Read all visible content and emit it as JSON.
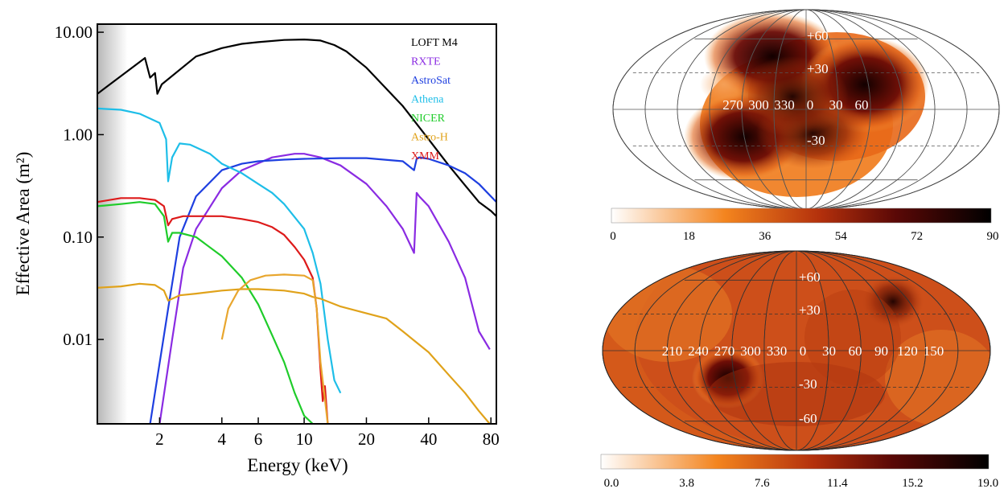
{
  "chart_data": [
    {
      "type": "line",
      "xlabel": "Energy (keV)",
      "ylabel": "Effective Area (m²)",
      "xscale": "log",
      "yscale": "log",
      "xlim": [
        1.0,
        85
      ],
      "ylim": [
        0.0015,
        12
      ],
      "x_ticks": [
        2,
        4,
        6,
        10,
        20,
        40,
        80
      ],
      "x_tick_labels": [
        "2",
        "4",
        "6",
        "10",
        "20",
        "40",
        "80"
      ],
      "y_ticks": [
        0.01,
        0.1,
        1,
        10
      ],
      "y_tick_labels": [
        "0.01",
        "0.10",
        "1.00",
        "10.00"
      ],
      "shaded_region_x": [
        1.0,
        1.4
      ],
      "legend_position": "top-right",
      "series": [
        {
          "name": "LOFT M4",
          "color": "#000000",
          "x": [
            1.0,
            1.7,
            1.8,
            1.9,
            1.95,
            2.05,
            3,
            4,
            5,
            6,
            8,
            10,
            12,
            14,
            16,
            20,
            25,
            30,
            40,
            50,
            60,
            70,
            80,
            85
          ],
          "y": [
            2.5,
            5.6,
            3.6,
            4.0,
            2.5,
            3.1,
            5.8,
            7.0,
            7.7,
            8.0,
            8.4,
            8.5,
            8.3,
            7.5,
            6.5,
            4.5,
            2.8,
            1.9,
            0.9,
            0.5,
            0.32,
            0.22,
            0.18,
            0.16
          ]
        },
        {
          "name": "RXTE",
          "color": "#8A2BE2",
          "x": [
            2,
            2.3,
            2.6,
            3,
            4,
            5,
            7,
            9,
            10,
            12,
            15,
            20,
            25,
            30,
            34,
            35,
            36,
            40,
            50,
            60,
            70,
            79
          ],
          "y": [
            0.0015,
            0.01,
            0.05,
            0.12,
            0.3,
            0.45,
            0.6,
            0.65,
            0.65,
            0.6,
            0.5,
            0.33,
            0.2,
            0.12,
            0.07,
            0.27,
            0.25,
            0.2,
            0.09,
            0.04,
            0.012,
            0.008
          ]
        },
        {
          "name": "AstroSat",
          "color": "#1E3FE0",
          "x": [
            1.8,
            2.2,
            2.5,
            3,
            4,
            5,
            6,
            8,
            10,
            15,
            20,
            30,
            34,
            35,
            36,
            40,
            50,
            60,
            70,
            85
          ],
          "y": [
            0.0015,
            0.02,
            0.1,
            0.25,
            0.45,
            0.52,
            0.55,
            0.57,
            0.58,
            0.59,
            0.59,
            0.55,
            0.45,
            0.58,
            0.6,
            0.58,
            0.5,
            0.42,
            0.33,
            0.22
          ]
        },
        {
          "name": "Athena",
          "color": "#1EBEE8",
          "x": [
            1.0,
            1.3,
            1.6,
            2.0,
            2.15,
            2.2,
            2.3,
            2.5,
            2.8,
            3.0,
            3.5,
            4,
            5,
            6,
            7,
            8,
            10,
            11,
            12,
            13,
            14,
            15
          ],
          "y": [
            1.8,
            1.75,
            1.6,
            1.3,
            0.9,
            0.35,
            0.6,
            0.82,
            0.8,
            0.75,
            0.65,
            0.52,
            0.42,
            0.33,
            0.27,
            0.21,
            0.12,
            0.07,
            0.035,
            0.01,
            0.004,
            0.003
          ]
        },
        {
          "name": "NICER",
          "color": "#1FCC2A",
          "x": [
            1.0,
            1.3,
            1.6,
            1.9,
            2.1,
            2.2,
            2.3,
            2.5,
            3,
            4,
            5,
            6,
            7,
            8,
            9,
            10,
            11
          ],
          "y": [
            0.2,
            0.21,
            0.22,
            0.21,
            0.16,
            0.09,
            0.11,
            0.11,
            0.1,
            0.065,
            0.04,
            0.022,
            0.011,
            0.006,
            0.003,
            0.0018,
            0.0015
          ]
        },
        {
          "name": "Astro-H",
          "color": "#E0A21A",
          "x": [
            1.0,
            1.3,
            1.6,
            1.9,
            2.1,
            2.2,
            2.5,
            3,
            4,
            5,
            6,
            8,
            10,
            11,
            12,
            15,
            20,
            25,
            30,
            40,
            50,
            60,
            70,
            79
          ],
          "y": [
            0.032,
            0.033,
            0.035,
            0.034,
            0.03,
            0.024,
            0.027,
            0.028,
            0.03,
            0.031,
            0.031,
            0.03,
            0.028,
            0.026,
            0.025,
            0.021,
            0.018,
            0.016,
            0.012,
            0.0075,
            0.0045,
            0.003,
            0.002,
            0.0015
          ]
        },
        {
          "name": "XMM",
          "color": "#DD1A1A",
          "x": [
            1.0,
            1.3,
            1.6,
            1.9,
            2.1,
            2.2,
            2.3,
            2.6,
            3,
            4,
            5,
            6,
            7,
            8,
            9,
            10,
            11,
            11.5,
            12,
            12.3,
            12.6,
            13
          ],
          "y": [
            0.22,
            0.24,
            0.24,
            0.23,
            0.2,
            0.13,
            0.15,
            0.16,
            0.16,
            0.16,
            0.15,
            0.14,
            0.125,
            0.105,
            0.08,
            0.06,
            0.04,
            0.02,
            0.005,
            0.0025,
            0.0035,
            0.0015
          ]
        },
        {
          "name": "",
          "color": "#E8A62E",
          "x": [
            4,
            4.3,
            4.8,
            5.5,
            6.5,
            8,
            10,
            11,
            11.5,
            12,
            12.5,
            13
          ],
          "y": [
            0.01,
            0.02,
            0.03,
            0.038,
            0.042,
            0.043,
            0.042,
            0.038,
            0.02,
            0.006,
            0.003,
            0.0015
          ]
        }
      ]
    },
    {
      "type": "heatmap",
      "projection": "Aitoff/Hammer all-sky (Galactic)",
      "longitude_labels": [
        "270",
        "300",
        "330",
        "0",
        "30",
        "60"
      ],
      "latitude_labels": [
        "+60",
        "+30",
        "-30"
      ],
      "colorbar_ticks": [
        "0",
        "18",
        "36",
        "54",
        "72",
        "90"
      ],
      "colorbar_range": [
        0,
        90
      ],
      "colormap": [
        "#ffffff",
        "#f07a1a",
        "#7a0a08",
        "#000000"
      ]
    },
    {
      "type": "heatmap",
      "projection": "Aitoff/Hammer all-sky (Galactic)",
      "longitude_labels": [
        "210",
        "240",
        "270",
        "300",
        "330",
        "0",
        "30",
        "60",
        "90",
        "120",
        "150"
      ],
      "latitude_labels": [
        "+60",
        "+30",
        "-30",
        "-60"
      ],
      "colorbar_ticks": [
        "0.0",
        "3.8",
        "7.6",
        "11.4",
        "15.2",
        "19.0"
      ],
      "colorbar_range": [
        0.0,
        19.0
      ],
      "colormap": [
        "#ffffff",
        "#f07a1a",
        "#7a0a08",
        "#000000"
      ]
    }
  ]
}
